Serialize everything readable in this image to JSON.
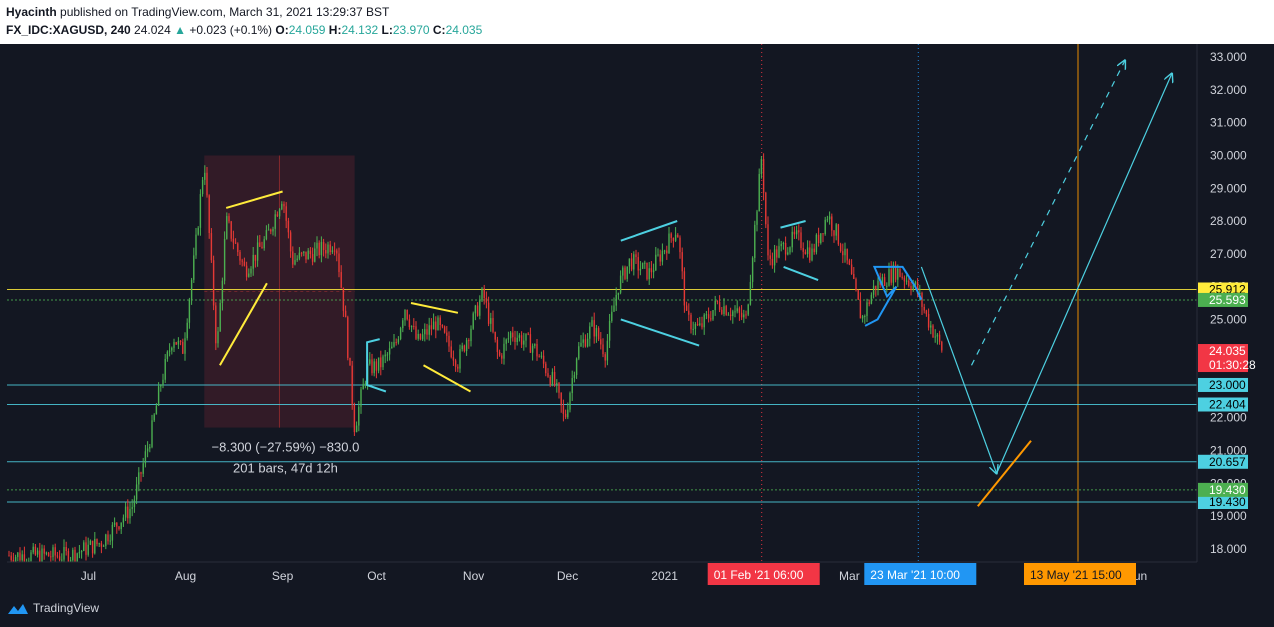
{
  "header": {
    "author": "Hyacinth",
    "published": "published on TradingView.com, March 31, 2021 13:29:37 BST",
    "symbol": "FX_IDC:XAGUSD, 240",
    "last": "24.024",
    "change": "+0.023 (+0.1%)",
    "o_label": "O:",
    "o_value": "24.059",
    "h_label": "H:",
    "h_value": "24.132",
    "l_label": "L:",
    "l_value": "23.970",
    "c_label": "C:",
    "c_value": "24.035"
  },
  "footer": {
    "brand": "TradingView",
    "logo_icon": "tradingview-logo-icon"
  },
  "colors": {
    "background": "#131722",
    "up": "#4caf50",
    "down": "#e53935",
    "hline": "#4dd0e1",
    "yellow": "#ffeb3b",
    "orange": "#ff9800",
    "blue": "#2196f3",
    "red": "#f23645",
    "text": "#d1d4dc"
  },
  "chart_data": {
    "type": "candlestick",
    "symbol": "FX_IDC:XAGUSD",
    "interval": "240",
    "xaxis": {
      "ticks": [
        "Jul",
        "Aug",
        "Sep",
        "Oct",
        "Nov",
        "Dec",
        "2021",
        "Mar",
        "Jun"
      ],
      "start": "2020-06-05",
      "end": "2021-06-20"
    },
    "yaxis": {
      "range": [
        17.6,
        33.4
      ],
      "ticks": [
        "18.000",
        "19.000",
        "20.000",
        "21.000",
        "22.000",
        "23.000",
        "24.000",
        "25.000",
        "26.000",
        "27.000",
        "28.000",
        "29.000",
        "30.000",
        "31.000",
        "32.000",
        "33.000"
      ]
    },
    "price_path": [
      [
        "2020-06-05",
        17.8
      ],
      [
        "2020-06-25",
        17.8
      ],
      [
        "2020-07-05",
        18.2
      ],
      [
        "2020-07-15",
        19.3
      ],
      [
        "2020-07-21",
        21.5
      ],
      [
        "2020-07-24",
        23.0
      ],
      [
        "2020-07-28",
        24.5
      ],
      [
        "2020-07-31",
        24.0
      ],
      [
        "2020-08-04",
        27.0
      ],
      [
        "2020-08-07",
        29.9
      ],
      [
        "2020-08-11",
        24.0
      ],
      [
        "2020-08-14",
        28.0
      ],
      [
        "2020-08-20",
        26.5
      ],
      [
        "2020-08-27",
        27.5
      ],
      [
        "2020-09-01",
        28.8
      ],
      [
        "2020-09-04",
        26.8
      ],
      [
        "2020-09-10",
        27.0
      ],
      [
        "2020-09-15",
        27.2
      ],
      [
        "2020-09-18",
        27.4
      ],
      [
        "2020-09-21",
        25.0
      ],
      [
        "2020-09-24",
        21.7
      ],
      [
        "2020-09-28",
        23.5
      ],
      [
        "2020-10-02",
        23.6
      ],
      [
        "2020-10-07",
        24.2
      ],
      [
        "2020-10-10",
        25.4
      ],
      [
        "2020-10-14",
        24.3
      ],
      [
        "2020-10-20",
        24.9
      ],
      [
        "2020-10-27",
        23.7
      ],
      [
        "2020-11-04",
        25.8
      ],
      [
        "2020-11-09",
        23.8
      ],
      [
        "2020-11-13",
        24.6
      ],
      [
        "2020-11-20",
        24.2
      ],
      [
        "2020-11-27",
        23.0
      ],
      [
        "2020-11-30",
        21.9
      ],
      [
        "2020-12-04",
        24.0
      ],
      [
        "2020-12-09",
        24.8
      ],
      [
        "2020-12-13",
        24.0
      ],
      [
        "2020-12-17",
        26.0
      ],
      [
        "2020-12-21",
        26.8
      ],
      [
        "2020-12-27",
        26.4
      ],
      [
        "2021-01-05",
        27.8
      ],
      [
        "2021-01-08",
        25.0
      ],
      [
        "2021-01-12",
        24.7
      ],
      [
        "2021-01-18",
        25.5
      ],
      [
        "2021-01-27",
        25.0
      ],
      [
        "2021-02-01",
        30.0
      ],
      [
        "2021-02-03",
        26.8
      ],
      [
        "2021-02-08",
        27.2
      ],
      [
        "2021-02-12",
        27.5
      ],
      [
        "2021-02-17",
        27.0
      ],
      [
        "2021-02-22",
        28.2
      ],
      [
        "2021-02-25",
        27.6
      ],
      [
        "2021-03-01",
        26.5
      ],
      [
        "2021-03-05",
        25.0
      ],
      [
        "2021-03-09",
        26.0
      ],
      [
        "2021-03-16",
        26.5
      ],
      [
        "2021-03-22",
        26.0
      ],
      [
        "2021-03-26",
        25.0
      ],
      [
        "2021-03-31",
        24.0
      ]
    ],
    "horizontal_levels": [
      {
        "value": 25.912,
        "label": "25.912",
        "color": "#ffeb3b",
        "text_color": "#000000"
      },
      {
        "value": 25.593,
        "label": "25.593",
        "color": "#4caf50",
        "text_color": "#ffffff"
      },
      {
        "value": 24.035,
        "label": "24.035",
        "sub": "01:30:28",
        "color": "#f23645",
        "text_color": "#ffffff"
      },
      {
        "value": 23.0,
        "label": "23.000",
        "color": "#4dd0e1",
        "text_color": "#000000"
      },
      {
        "value": 22.404,
        "label": "22.404",
        "color": "#4dd0e1",
        "text_color": "#000000"
      },
      {
        "value": 20.657,
        "label": "20.657",
        "color": "#4dd0e1",
        "text_color": "#000000"
      },
      {
        "value": 19.43,
        "label": "19.430",
        "color": "#4dd0e1",
        "text_color": "#000000"
      },
      {
        "value": 19.8,
        "label": "19.430",
        "color": "#4caf50",
        "text_color": "#ffffff"
      }
    ],
    "measure_box": {
      "x1": "2020-08-07",
      "x2": "2020-09-24",
      "y1": 30.0,
      "y2": 21.7,
      "change_label": "−8.300 (−27.59%) −830.0",
      "bars_label": "201 bars, 47d 12h"
    },
    "vertical_markers": [
      {
        "x": "2021-02-01",
        "label": "01 Feb '21",
        "time": "06:00",
        "color": "#f23645"
      },
      {
        "x": "2021-03-23",
        "label": "23 Mar '21",
        "time": "10:00",
        "color": "#2196f3"
      },
      {
        "x": "2021-05-13",
        "label": "13 May '21",
        "time": "15:00",
        "color": "#ff9800"
      }
    ],
    "drawings": [
      {
        "kind": "polyline",
        "color": "#ffeb3b",
        "points": [
          [
            "2020-08-12",
            23.6
          ],
          [
            "2020-08-27",
            26.1
          ]
        ]
      },
      {
        "kind": "polyline",
        "color": "#ffeb3b",
        "points": [
          [
            "2020-08-14",
            28.4
          ],
          [
            "2020-09-01",
            28.9
          ]
        ]
      },
      {
        "kind": "polyline",
        "color": "#ffeb3b",
        "points": [
          [
            "2020-10-12",
            25.5
          ],
          [
            "2020-10-27",
            25.2
          ]
        ]
      },
      {
        "kind": "polyline",
        "color": "#ffeb3b",
        "points": [
          [
            "2020-10-16",
            23.6
          ],
          [
            "2020-10-31",
            22.8
          ]
        ]
      },
      {
        "kind": "polyline",
        "color": "#4dd0e1",
        "points": [
          [
            "2020-10-02",
            24.4
          ],
          [
            "2020-09-28",
            24.3
          ],
          [
            "2020-09-28",
            23.0
          ],
          [
            "2020-10-04",
            22.8
          ]
        ]
      },
      {
        "kind": "polyline",
        "color": "#4dd0e1",
        "points": [
          [
            "2020-12-18",
            27.4
          ],
          [
            "2021-01-05",
            28.0
          ]
        ]
      },
      {
        "kind": "polyline",
        "color": "#4dd0e1",
        "points": [
          [
            "2020-12-18",
            25.0
          ],
          [
            "2021-01-12",
            24.2
          ]
        ]
      },
      {
        "kind": "polyline",
        "color": "#4dd0e1",
        "points": [
          [
            "2021-02-07",
            27.8
          ],
          [
            "2021-02-15",
            28.0
          ]
        ]
      },
      {
        "kind": "polyline",
        "color": "#4dd0e1",
        "points": [
          [
            "2021-02-08",
            26.6
          ],
          [
            "2021-02-19",
            26.2
          ]
        ]
      },
      {
        "kind": "polyline",
        "color": "#2196f3",
        "points": [
          [
            "2021-03-06",
            24.8
          ],
          [
            "2021-03-10",
            25.0
          ],
          [
            "2021-03-16",
            26.0
          ],
          [
            "2021-03-13",
            25.7
          ],
          [
            "2021-03-09",
            26.6
          ],
          [
            "2021-03-18",
            26.6
          ],
          [
            "2021-03-22",
            26.0
          ],
          [
            "2021-03-24",
            25.6
          ]
        ]
      },
      {
        "kind": "arrow",
        "color": "#4dd0e1",
        "points": [
          [
            "2021-03-24",
            26.6
          ],
          [
            "2021-04-17",
            20.3
          ]
        ]
      },
      {
        "kind": "arrow",
        "color": "#4dd0e1",
        "points": [
          [
            "2021-04-17",
            20.3
          ],
          [
            "2021-06-12",
            32.5
          ]
        ]
      },
      {
        "kind": "arrow",
        "color": "#4dd0e1",
        "dashed": true,
        "points": [
          [
            "2021-04-09",
            23.6
          ],
          [
            "2021-05-28",
            32.9
          ]
        ]
      },
      {
        "kind": "polyline",
        "color": "#ff9800",
        "points": [
          [
            "2021-04-11",
            19.3
          ],
          [
            "2021-04-28",
            21.3
          ]
        ]
      }
    ]
  }
}
